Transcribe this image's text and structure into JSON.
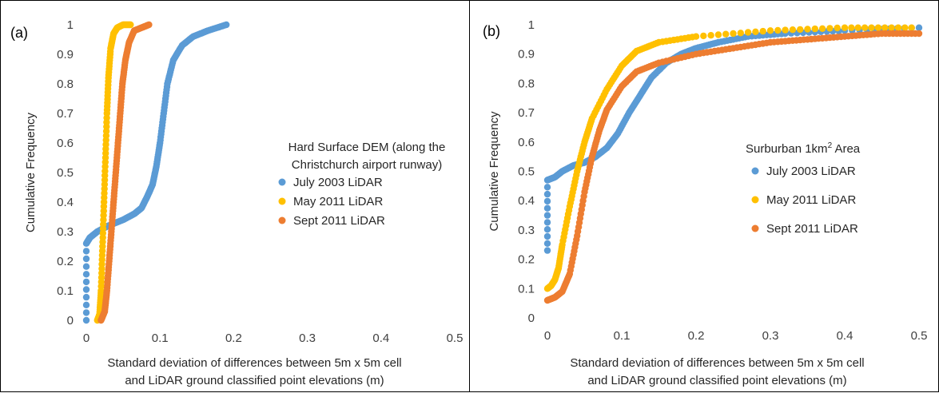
{
  "chart_data": [
    {
      "panel_label": "(a)",
      "type": "scatter",
      "xlabel_lines": [
        "Standard deviation of differences between 5m x 5m cell",
        "and LiDAR ground classified point elevations (m)"
      ],
      "ylabel": "Cumulative Frequency",
      "xlim": [
        0,
        0.5
      ],
      "ylim": [
        0,
        1
      ],
      "xticks": [
        "0",
        "0.1",
        "0.2",
        "0.3",
        "0.4",
        "0.5"
      ],
      "yticks": [
        "0",
        "0.1",
        "0.2",
        "0.3",
        "0.4",
        "0.5",
        "0.6",
        "0.7",
        "0.8",
        "0.9",
        "1"
      ],
      "legend_title_lines": [
        "Hard Surface DEM (along the",
        "Christchurch airport runway)"
      ],
      "legend_position": "right",
      "series": [
        {
          "name": "July 2003 LiDAR",
          "color": "#5b9bd5",
          "points": [
            [
              0.0,
              0.0
            ],
            [
              0.0,
              0.26
            ],
            [
              0.005,
              0.28
            ],
            [
              0.015,
              0.3
            ],
            [
              0.03,
              0.32
            ],
            [
              0.05,
              0.34
            ],
            [
              0.065,
              0.36
            ],
            [
              0.075,
              0.38
            ],
            [
              0.083,
              0.42
            ],
            [
              0.09,
              0.46
            ],
            [
              0.095,
              0.52
            ],
            [
              0.1,
              0.6
            ],
            [
              0.105,
              0.7
            ],
            [
              0.11,
              0.8
            ],
            [
              0.118,
              0.88
            ],
            [
              0.13,
              0.93
            ],
            [
              0.145,
              0.96
            ],
            [
              0.165,
              0.98
            ],
            [
              0.19,
              1.0
            ]
          ]
        },
        {
          "name": "May 2011 LiDAR",
          "color": "#ffc000",
          "points": [
            [
              0.015,
              0.0
            ],
            [
              0.018,
              0.02
            ],
            [
              0.02,
              0.1
            ],
            [
              0.022,
              0.25
            ],
            [
              0.024,
              0.4
            ],
            [
              0.026,
              0.55
            ],
            [
              0.028,
              0.7
            ],
            [
              0.03,
              0.82
            ],
            [
              0.033,
              0.92
            ],
            [
              0.037,
              0.97
            ],
            [
              0.042,
              0.99
            ],
            [
              0.05,
              1.0
            ],
            [
              0.06,
              1.0
            ]
          ]
        },
        {
          "name": "Sept 2011 LiDAR",
          "color": "#ed7d31",
          "points": [
            [
              0.02,
              0.0
            ],
            [
              0.025,
              0.03
            ],
            [
              0.028,
              0.1
            ],
            [
              0.031,
              0.2
            ],
            [
              0.034,
              0.3
            ],
            [
              0.037,
              0.4
            ],
            [
              0.04,
              0.5
            ],
            [
              0.043,
              0.6
            ],
            [
              0.046,
              0.7
            ],
            [
              0.049,
              0.8
            ],
            [
              0.053,
              0.88
            ],
            [
              0.058,
              0.94
            ],
            [
              0.065,
              0.98
            ],
            [
              0.075,
              0.99
            ],
            [
              0.085,
              1.0
            ]
          ]
        }
      ]
    },
    {
      "panel_label": "(b)",
      "type": "scatter",
      "xlabel_lines": [
        "Standard deviation of differences between 5m x 5m cell",
        "and LiDAR ground classified point elevations (m)"
      ],
      "ylabel": "Cumulative Frequency",
      "xlim": [
        0,
        0.5
      ],
      "ylim": [
        0,
        1
      ],
      "xticks": [
        "0",
        "0.1",
        "0.2",
        "0.3",
        "0.4",
        "0.5"
      ],
      "yticks": [
        "0",
        "0.1",
        "0.2",
        "0.3",
        "0.4",
        "0.5",
        "0.6",
        "0.7",
        "0.8",
        "0.9",
        "1"
      ],
      "legend_title": {
        "prefix": "Surburban 1km",
        "sup": "2",
        "suffix": " Area"
      },
      "legend_position": "right",
      "series": [
        {
          "name": "July 2003 LiDAR",
          "color": "#5b9bd5",
          "points": [
            [
              0.0,
              0.23
            ],
            [
              0.0,
              0.47
            ],
            [
              0.01,
              0.48
            ],
            [
              0.02,
              0.5
            ],
            [
              0.035,
              0.52
            ],
            [
              0.05,
              0.53
            ],
            [
              0.065,
              0.55
            ],
            [
              0.08,
              0.58
            ],
            [
              0.095,
              0.63
            ],
            [
              0.11,
              0.7
            ],
            [
              0.125,
              0.76
            ],
            [
              0.14,
              0.82
            ],
            [
              0.16,
              0.87
            ],
            [
              0.18,
              0.9
            ],
            [
              0.2,
              0.92
            ],
            [
              0.23,
              0.94
            ],
            [
              0.27,
              0.96
            ],
            [
              0.32,
              0.97
            ],
            [
              0.4,
              0.98
            ],
            [
              0.5,
              0.99
            ]
          ]
        },
        {
          "name": "May 2011 LiDAR",
          "color": "#ffc000",
          "points": [
            [
              0.0,
              0.1
            ],
            [
              0.005,
              0.11
            ],
            [
              0.01,
              0.13
            ],
            [
              0.015,
              0.17
            ],
            [
              0.02,
              0.25
            ],
            [
              0.03,
              0.38
            ],
            [
              0.04,
              0.5
            ],
            [
              0.05,
              0.6
            ],
            [
              0.06,
              0.68
            ],
            [
              0.08,
              0.78
            ],
            [
              0.1,
              0.86
            ],
            [
              0.12,
              0.91
            ],
            [
              0.15,
              0.94
            ],
            [
              0.2,
              0.96
            ],
            [
              0.3,
              0.98
            ],
            [
              0.4,
              0.99
            ],
            [
              0.49,
              0.99
            ]
          ]
        },
        {
          "name": "Sept 2011 LiDAR",
          "color": "#ed7d31",
          "points": [
            [
              0.0,
              0.06
            ],
            [
              0.01,
              0.07
            ],
            [
              0.02,
              0.09
            ],
            [
              0.03,
              0.15
            ],
            [
              0.04,
              0.28
            ],
            [
              0.05,
              0.43
            ],
            [
              0.06,
              0.55
            ],
            [
              0.07,
              0.64
            ],
            [
              0.08,
              0.71
            ],
            [
              0.1,
              0.79
            ],
            [
              0.12,
              0.84
            ],
            [
              0.15,
              0.87
            ],
            [
              0.2,
              0.9
            ],
            [
              0.25,
              0.92
            ],
            [
              0.3,
              0.94
            ],
            [
              0.35,
              0.95
            ],
            [
              0.4,
              0.96
            ],
            [
              0.45,
              0.97
            ],
            [
              0.5,
              0.97
            ]
          ]
        }
      ]
    }
  ]
}
